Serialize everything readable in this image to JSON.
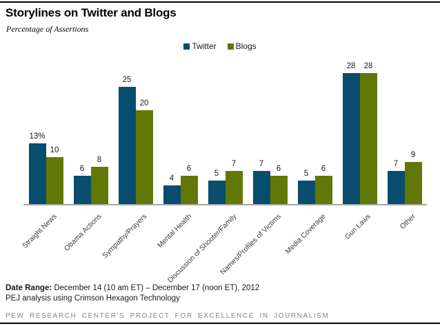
{
  "header": {
    "title": "Storylines on Twitter and Blogs",
    "subtitle": "Percentage of Assertions"
  },
  "chart_data": {
    "type": "bar",
    "title": "Storylines on Twitter and Blogs",
    "ylabel": "Percentage of Assertions",
    "categories": [
      "Straight News",
      "Obama Actions",
      "Sympathy/Prayers",
      "Mental Health",
      "Discussion of Shooter/Family",
      "Names/Profiles of Victims",
      "Media Coverage",
      "Gun Laws",
      "Other"
    ],
    "series": [
      {
        "name": "Twitter",
        "color": "#084D6E",
        "values": [
          13,
          6,
          25,
          4,
          5,
          7,
          5,
          28,
          7
        ],
        "display_values": [
          "13%",
          "6",
          "25",
          "4",
          "5",
          "7",
          "5",
          "28",
          "7"
        ]
      },
      {
        "name": "Blogs",
        "color": "#627806",
        "values": [
          10,
          8,
          20,
          6,
          7,
          6,
          6,
          28,
          9
        ],
        "display_values": [
          "10",
          "8",
          "20",
          "6",
          "7",
          "6",
          "6",
          "28",
          "9"
        ]
      }
    ],
    "ylim": [
      0,
      30
    ],
    "grid": false,
    "axis_color": "#A6A6A6",
    "legend_position": "top-center",
    "value_labels": true,
    "xlabel_rotation_deg": 45
  },
  "footer": {
    "date_range_label": "Date Range:",
    "date_range_value": "December 14 (10 am ET) – December 17 (noon ET), 2012",
    "analysis_note": "PEJ analysis using Crimson Hexagon Technology",
    "branding": "PEW RESEARCH CENTER'S PROJECT FOR EXCELLENCE IN JOURNALISM"
  },
  "colors": {
    "twitter": "#084D6E",
    "blogs": "#627806",
    "axis": "#A6A6A6",
    "border": "#000000",
    "branding_text": "#7F8486"
  }
}
